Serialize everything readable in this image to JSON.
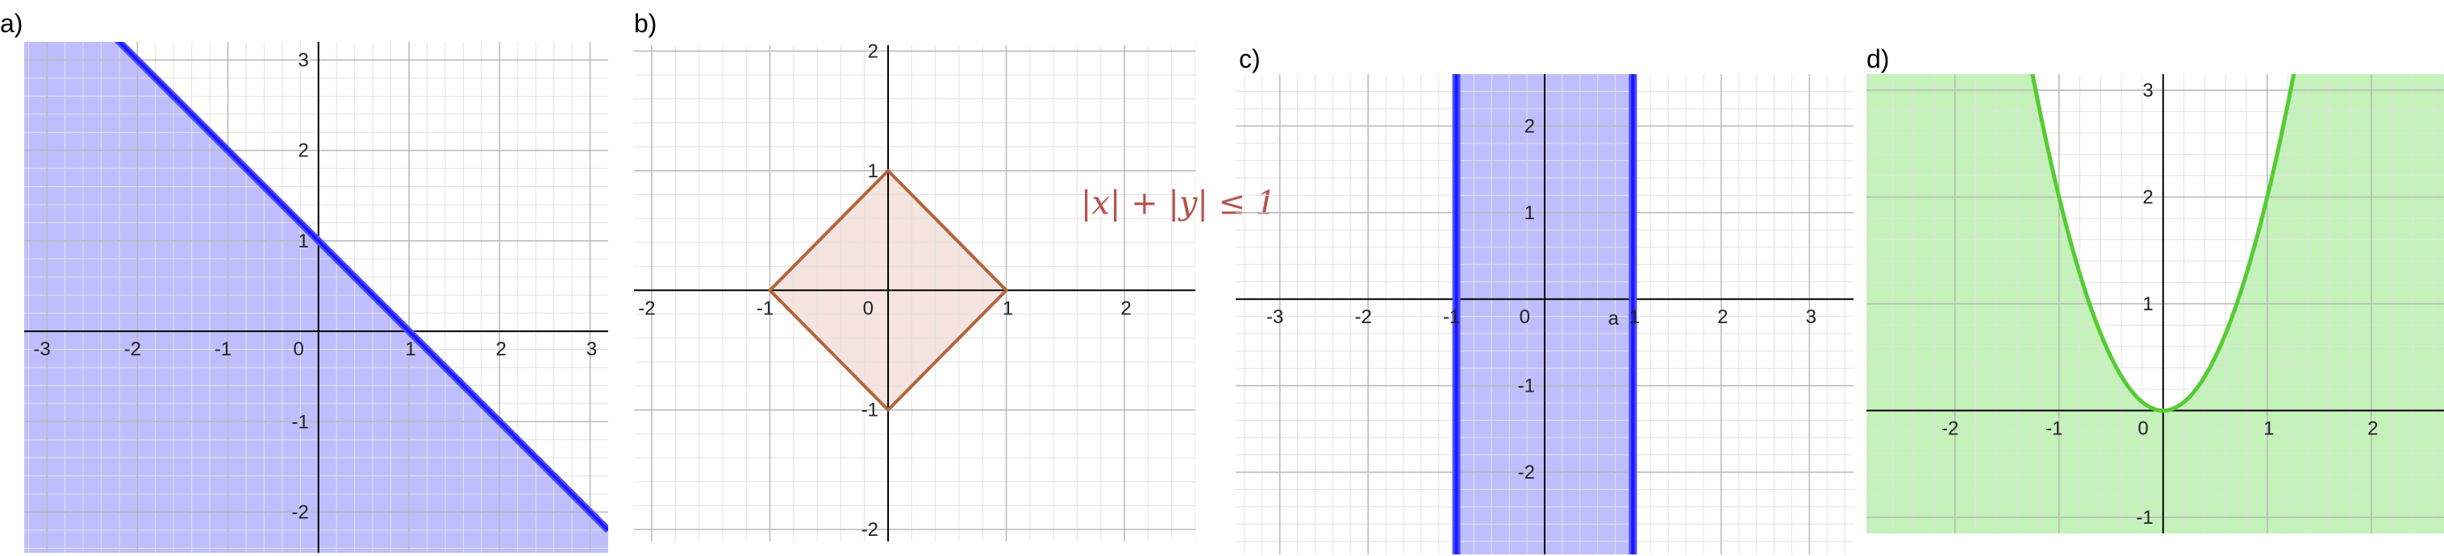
{
  "panels": [
    {
      "letter": "a)",
      "chart_data": {
        "type": "area",
        "title": "",
        "xlabel": "",
        "ylabel": "",
        "xlim": [
          -3.25,
          3.2
        ],
        "ylim": [
          -2.45,
          3.2
        ],
        "x_ticks": [
          "-3",
          "-2",
          "-1",
          "1",
          "2",
          "3"
        ],
        "y_ticks": [
          "-2",
          "-1",
          "1",
          "2",
          "3"
        ],
        "origin_label": "0",
        "grid": true,
        "series": [
          {
            "kind": "line",
            "points": [
              [
                -3.25,
                4.25
              ],
              [
                3.2,
                -2.2
              ]
            ],
            "color": "#1a1aff"
          }
        ],
        "shaded_region": {
          "description": "x + y <= 1",
          "color": "#b3b3ff"
        }
      }
    },
    {
      "letter": "b)",
      "chart_data": {
        "type": "area",
        "title": "",
        "xlabel": "",
        "ylabel": "",
        "xlim": [
          -2.15,
          2.6
        ],
        "ylim": [
          -2.1,
          2.05
        ],
        "x_ticks": [
          "-2",
          "-1",
          "1",
          "2"
        ],
        "y_ticks": [
          "-2",
          "-1",
          "1",
          "2"
        ],
        "origin_label": "0",
        "grid": true,
        "series": [
          {
            "kind": "polygon",
            "points": [
              [
                -1,
                0
              ],
              [
                0,
                1
              ],
              [
                1,
                0
              ],
              [
                0,
                -1
              ]
            ],
            "color": "#b5633c"
          }
        ],
        "shaded_region": {
          "description": "diamond interior",
          "color": "#f5e4df"
        },
        "annotation": "|x| + |y| ≤ 1"
      }
    },
    {
      "letter": "c)",
      "chart_data": {
        "type": "area",
        "title": "",
        "xlabel": "",
        "ylabel": "",
        "xlim": [
          -3.5,
          3.5
        ],
        "ylim": [
          -2.95,
          2.6
        ],
        "x_ticks": [
          "-3",
          "-2",
          "-1",
          "1",
          "2",
          "3"
        ],
        "y_ticks": [
          "-2",
          "-1",
          "1",
          "2"
        ],
        "origin_label": "0",
        "grid": true,
        "series": [
          {
            "kind": "vline",
            "x": -1,
            "color": "#1a1aff"
          },
          {
            "kind": "vline",
            "x": 1,
            "color": "#1a1aff"
          }
        ],
        "shaded_region": {
          "description": "-1 <= x <= 1",
          "color": "#b3b3ff"
        },
        "annotation": "a"
      }
    },
    {
      "letter": "d)",
      "chart_data": {
        "type": "area",
        "title": "",
        "xlabel": "",
        "ylabel": "",
        "xlim": [
          -2.85,
          2.9
        ],
        "ylim": [
          -1.15,
          3.15
        ],
        "x_ticks": [
          "-2",
          "-1",
          "1",
          "2"
        ],
        "y_ticks": [
          "-1",
          "1",
          "2",
          "3"
        ],
        "origin_label": "0",
        "grid": true,
        "series": [
          {
            "kind": "curve",
            "function": "y = 2x^2",
            "domain": [
              -1.27,
              1.27
            ],
            "color": "#55cc33"
          }
        ],
        "shaded_region": {
          "description": "y <= 2x^2",
          "color": "#bff0b3"
        }
      }
    }
  ]
}
